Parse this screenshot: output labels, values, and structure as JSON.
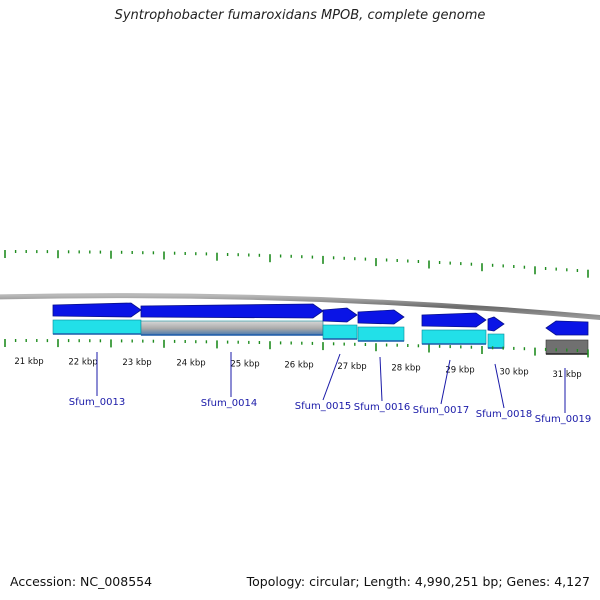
{
  "title": "Syntrophobacter fumaroxidans MPOB, complete genome",
  "footer": {
    "accession": "Accession: NC_008554",
    "stats": "Topology: circular; Length: 4,990,251 bp; Genes: 4,127"
  },
  "ruler": {
    "labels": [
      "21 kbp",
      "22 kbp",
      "23 kbp",
      "24 kbp",
      "25 kbp",
      "26 kbp",
      "27 kbp",
      "28 kbp",
      "29 kbp",
      "30 kbp",
      "31 kbp"
    ],
    "tick_color": "#1f8c1f"
  },
  "genes": [
    {
      "name": "Sfum_0013",
      "strand": "+",
      "fill": "#0a14e6",
      "cds": "#22e0e8"
    },
    {
      "name": "Sfum_0014",
      "strand": "+",
      "fill": "#0a14e6",
      "cds": "#a0a0a0"
    },
    {
      "name": "Sfum_0015",
      "strand": "+",
      "fill": "#0a14e6",
      "cds": "#22e0e8"
    },
    {
      "name": "Sfum_0016",
      "strand": "+",
      "fill": "#0a14e6",
      "cds": "#22e0e8"
    },
    {
      "name": "Sfum_0017",
      "strand": "+",
      "fill": "#0a14e6",
      "cds": "#22e0e8"
    },
    {
      "name": "Sfum_0018",
      "strand": "+",
      "fill": "#0a14e6",
      "cds": "#22e0e8"
    },
    {
      "name": "Sfum_0019",
      "strand": "-",
      "fill": "#0a14e6",
      "cds": "#707070"
    }
  ],
  "label_color": "#1a1aa8"
}
